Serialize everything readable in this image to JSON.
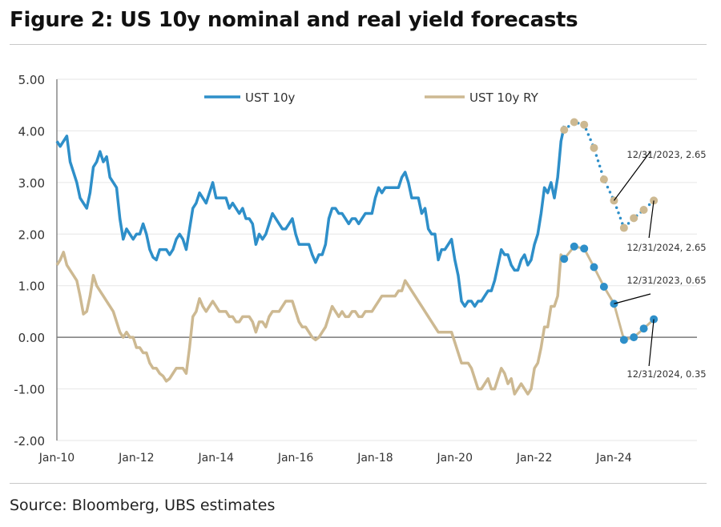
{
  "title": "Figure 2: US 10y nominal and real yield forecasts",
  "source": "Source: Bloomberg, UBS estimates",
  "chart_data": {
    "type": "line",
    "title": "Figure 2: US 10y nominal and real yield forecasts",
    "xlabel": "",
    "ylabel": "",
    "ylim": [
      -2,
      5
    ],
    "yticks": [
      "5.00",
      "4.00",
      "3.00",
      "2.00",
      "1.00",
      "0.00",
      "-1.00",
      "-2.00"
    ],
    "xlim": [
      "2010-01",
      "2026-02"
    ],
    "xticks": [
      "Jan-10",
      "Jan-12",
      "Jan-14",
      "Jan-16",
      "Jan-18",
      "Jan-20",
      "Jan-22",
      "Jan-24"
    ],
    "grid": "horizontal",
    "legend": "top",
    "colors": {
      "nominal": "#2e8fc9",
      "real": "#cdb992",
      "zero_line": "#7a7a7a",
      "grid": "#e6e6e6"
    },
    "series": [
      {
        "name": "UST 10y",
        "color": "#2e8fc9",
        "monthly_by_year": {
          "2010": [
            3.8,
            3.7,
            3.8,
            3.9,
            3.4,
            3.2,
            3.0,
            2.7,
            2.6,
            2.5,
            2.8,
            3.3
          ],
          "2011": [
            3.4,
            3.6,
            3.4,
            3.5,
            3.1,
            3.0,
            2.9,
            2.3,
            1.9,
            2.1,
            2.0,
            1.9
          ],
          "2012": [
            2.0,
            2.0,
            2.2,
            2.0,
            1.7,
            1.55,
            1.5,
            1.7,
            1.7,
            1.7,
            1.6,
            1.7
          ],
          "2013": [
            1.9,
            2.0,
            1.9,
            1.7,
            2.1,
            2.5,
            2.6,
            2.8,
            2.7,
            2.6,
            2.8,
            3.0
          ],
          "2014": [
            2.7,
            2.7,
            2.7,
            2.7,
            2.5,
            2.6,
            2.5,
            2.4,
            2.5,
            2.3,
            2.3,
            2.2
          ],
          "2015": [
            1.8,
            2.0,
            1.9,
            2.0,
            2.2,
            2.4,
            2.3,
            2.2,
            2.1,
            2.1,
            2.2,
            2.3
          ],
          "2016": [
            2.0,
            1.8,
            1.8,
            1.8,
            1.8,
            1.6,
            1.45,
            1.6,
            1.6,
            1.8,
            2.3,
            2.5
          ],
          "2017": [
            2.5,
            2.4,
            2.4,
            2.3,
            2.2,
            2.3,
            2.3,
            2.2,
            2.3,
            2.4,
            2.4,
            2.4
          ],
          "2018": [
            2.7,
            2.9,
            2.8,
            2.9,
            2.9,
            2.9,
            2.9,
            2.9,
            3.1,
            3.2,
            3.0,
            2.7
          ],
          "2019": [
            2.7,
            2.7,
            2.4,
            2.5,
            2.1,
            2.0,
            2.0,
            1.5,
            1.7,
            1.7,
            1.8,
            1.9
          ],
          "2020": [
            1.5,
            1.2,
            0.7,
            0.6,
            0.7,
            0.7,
            0.6,
            0.7,
            0.7,
            0.8,
            0.9,
            0.9
          ],
          "2021": [
            1.1,
            1.4,
            1.7,
            1.6,
            1.6,
            1.4,
            1.3,
            1.3,
            1.5,
            1.6,
            1.4,
            1.5
          ],
          "2022": [
            1.8,
            2.0,
            2.4,
            2.9,
            2.8,
            3.0,
            2.7,
            3.1,
            3.8,
            4.1
          ]
        },
        "forecast": [
          {
            "date": "2022-09-30",
            "value": 4.02
          },
          {
            "date": "2022-12-31",
            "value": 4.17
          },
          {
            "date": "2023-03-31",
            "value": 4.12
          },
          {
            "date": "2023-06-30",
            "value": 3.67
          },
          {
            "date": "2023-09-30",
            "value": 3.06
          },
          {
            "date": "2023-12-31",
            "value": 2.65
          },
          {
            "date": "2024-03-31",
            "value": 2.12
          },
          {
            "date": "2024-06-30",
            "value": 2.31
          },
          {
            "date": "2024-09-30",
            "value": 2.47
          },
          {
            "date": "2024-12-31",
            "value": 2.65
          }
        ]
      },
      {
        "name": "UST 10y RY",
        "color": "#cdb992",
        "monthly_by_year": {
          "2010": [
            1.4,
            1.5,
            1.65,
            1.4,
            1.3,
            1.2,
            1.1,
            0.8,
            0.45,
            0.5,
            0.8,
            1.2
          ],
          "2011": [
            1.0,
            0.9,
            0.8,
            0.7,
            0.6,
            0.5,
            0.3,
            0.1,
            0.0,
            0.1,
            0.0,
            0.0
          ],
          "2012": [
            -0.2,
            -0.2,
            -0.3,
            -0.3,
            -0.5,
            -0.6,
            -0.6,
            -0.7,
            -0.75,
            -0.85,
            -0.8,
            -0.7
          ],
          "2013": [
            -0.6,
            -0.6,
            -0.6,
            -0.7,
            -0.2,
            0.4,
            0.5,
            0.75,
            0.6,
            0.5,
            0.6,
            0.7
          ],
          "2014": [
            0.6,
            0.5,
            0.5,
            0.5,
            0.4,
            0.4,
            0.3,
            0.3,
            0.4,
            0.4,
            0.4,
            0.3
          ],
          "2015": [
            0.1,
            0.3,
            0.3,
            0.2,
            0.4,
            0.5,
            0.5,
            0.5,
            0.6,
            0.7,
            0.7,
            0.7
          ],
          "2016": [
            0.5,
            0.3,
            0.2,
            0.2,
            0.1,
            0.0,
            -0.05,
            0.0,
            0.1,
            0.2,
            0.4,
            0.6
          ],
          "2017": [
            0.5,
            0.4,
            0.5,
            0.4,
            0.4,
            0.5,
            0.5,
            0.4,
            0.4,
            0.5,
            0.5,
            0.5
          ],
          "2018": [
            0.6,
            0.7,
            0.8,
            0.8,
            0.8,
            0.8,
            0.8,
            0.9,
            0.9,
            1.1,
            1.0,
            0.9
          ],
          "2019": [
            0.8,
            0.7,
            0.6,
            0.5,
            0.4,
            0.3,
            0.2,
            0.1,
            0.1,
            0.1,
            0.1,
            0.1
          ],
          "2020": [
            -0.1,
            -0.3,
            -0.5,
            -0.5,
            -0.5,
            -0.6,
            -0.8,
            -1.0,
            -1.0,
            -0.9,
            -0.8,
            -1.0
          ],
          "2021": [
            -1.0,
            -0.8,
            -0.6,
            -0.7,
            -0.9,
            -0.8,
            -1.1,
            -1.0,
            -0.9,
            -1.0,
            -1.1,
            -1.0
          ],
          "2022": [
            -0.6,
            -0.5,
            -0.2,
            0.2,
            0.2,
            0.6,
            0.6,
            0.8,
            1.6,
            1.52
          ]
        },
        "forecast": [
          {
            "date": "2022-09-30",
            "value": 1.52
          },
          {
            "date": "2022-12-31",
            "value": 1.76
          },
          {
            "date": "2023-03-31",
            "value": 1.72
          },
          {
            "date": "2023-06-30",
            "value": 1.36
          },
          {
            "date": "2023-09-30",
            "value": 0.98
          },
          {
            "date": "2023-12-31",
            "value": 0.65
          },
          {
            "date": "2024-03-31",
            "value": -0.05
          },
          {
            "date": "2024-06-30",
            "value": 0.0
          },
          {
            "date": "2024-09-30",
            "value": 0.17
          },
          {
            "date": "2024-12-31",
            "value": 0.35
          }
        ]
      }
    ],
    "annotations": [
      {
        "text": "12/31/2023, 2.65",
        "date": "2023-12-31",
        "value": 2.65
      },
      {
        "text": "12/31/2024, 2.65",
        "date": "2024-12-31",
        "value": 2.65
      },
      {
        "text": "12/31/2023, 0.65",
        "date": "2023-12-31",
        "value": 0.65
      },
      {
        "text": "12/31/2024, 0.35",
        "date": "2024-12-31",
        "value": 0.35
      }
    ]
  }
}
